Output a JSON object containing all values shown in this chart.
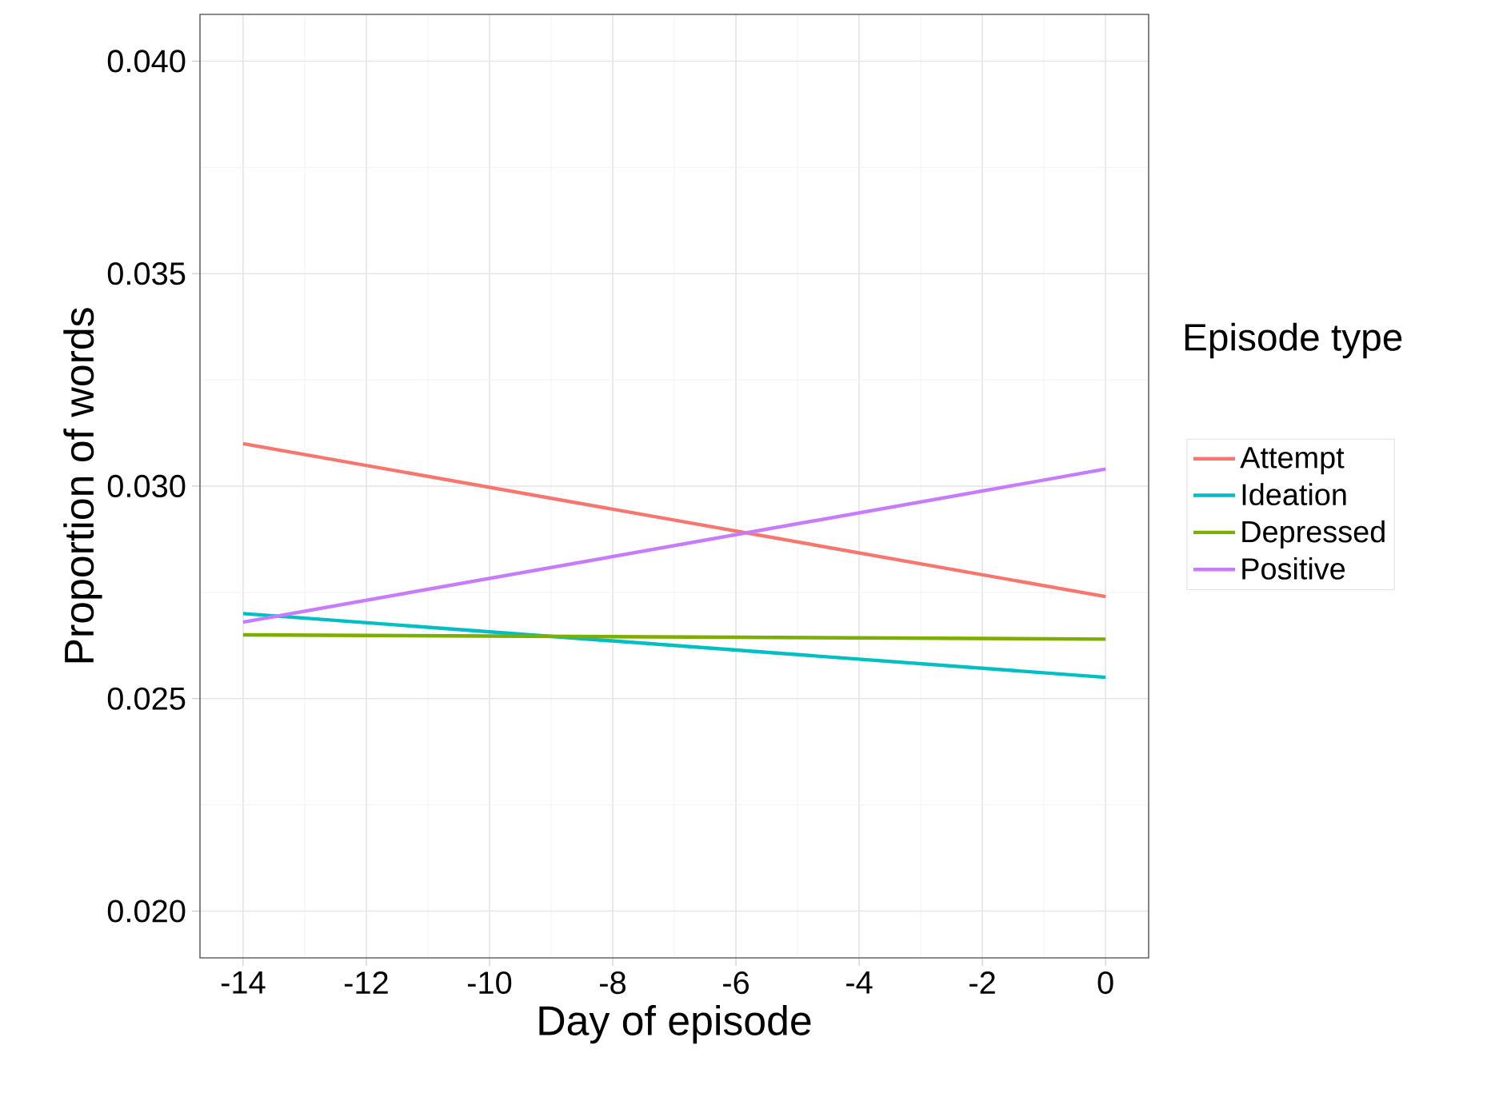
{
  "chart_data": {
    "type": "line",
    "xlabel": "Day of episode",
    "ylabel": "Proportion of words",
    "legend_title": "Episode type",
    "xlim": [
      -14.7,
      0.7
    ],
    "ylim": [
      0.0189,
      0.0411
    ],
    "xticks": [
      -14,
      -12,
      -10,
      -8,
      -6,
      -4,
      -2,
      0
    ],
    "yticks": [
      {
        "value": 0.02,
        "label": "0.020"
      },
      {
        "value": 0.025,
        "label": "0.025"
      },
      {
        "value": 0.03,
        "label": "0.030"
      },
      {
        "value": 0.035,
        "label": "0.035"
      },
      {
        "value": 0.04,
        "label": "0.040"
      }
    ],
    "x": [
      -14,
      0
    ],
    "grid": true,
    "legend": "right",
    "line_style": "solid",
    "marker": "none",
    "series": [
      {
        "name": "Attempt",
        "color": "#f8766d",
        "values": [
          0.031,
          0.0274
        ]
      },
      {
        "name": "Ideation",
        "color": "#00bfc4",
        "values": [
          0.027,
          0.0255
        ]
      },
      {
        "name": "Depressed",
        "color": "#7cae00",
        "values": [
          0.0265,
          0.0264
        ]
      },
      {
        "name": "Positive",
        "color": "#c77cff",
        "values": [
          0.0268,
          0.0304
        ]
      }
    ]
  }
}
